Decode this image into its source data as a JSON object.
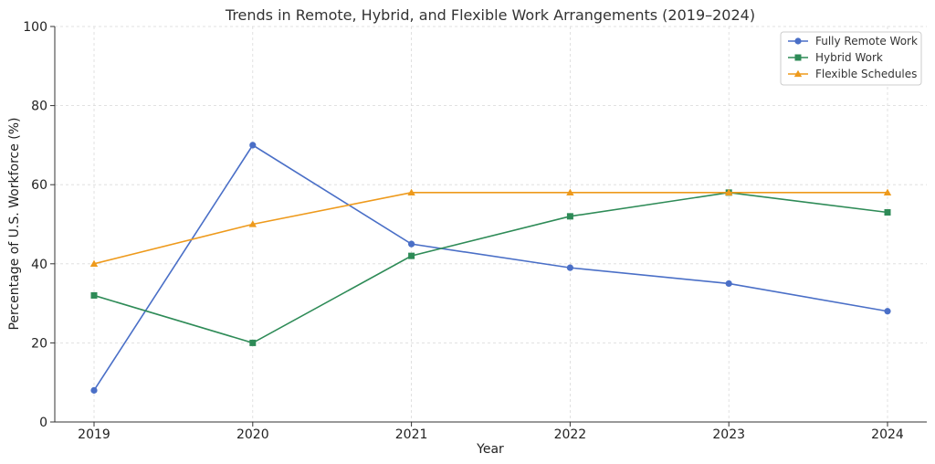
{
  "chart_data": {
    "type": "line",
    "title": "Trends in Remote, Hybrid, and Flexible Work Arrangements (2019–2024)",
    "xlabel": "Year",
    "ylabel": "Percentage of U.S. Workforce (%)",
    "x": [
      "2019",
      "2020",
      "2021",
      "2022",
      "2023",
      "2024"
    ],
    "ylim": [
      0,
      100
    ],
    "yticks": [
      0,
      20,
      40,
      60,
      80,
      100
    ],
    "grid": true,
    "legend_position": "top-right",
    "series": [
      {
        "name": "Fully Remote Work",
        "values": [
          8,
          70,
          45,
          39,
          35,
          28
        ],
        "color": "#4a6fc7",
        "marker": "circle"
      },
      {
        "name": "Hybrid Work",
        "values": [
          32,
          20,
          42,
          52,
          58,
          53
        ],
        "color": "#2e8b57",
        "marker": "square"
      },
      {
        "name": "Flexible Schedules",
        "values": [
          40,
          50,
          58,
          58,
          58,
          58
        ],
        "color": "#ee9a1c",
        "marker": "triangle"
      }
    ]
  }
}
